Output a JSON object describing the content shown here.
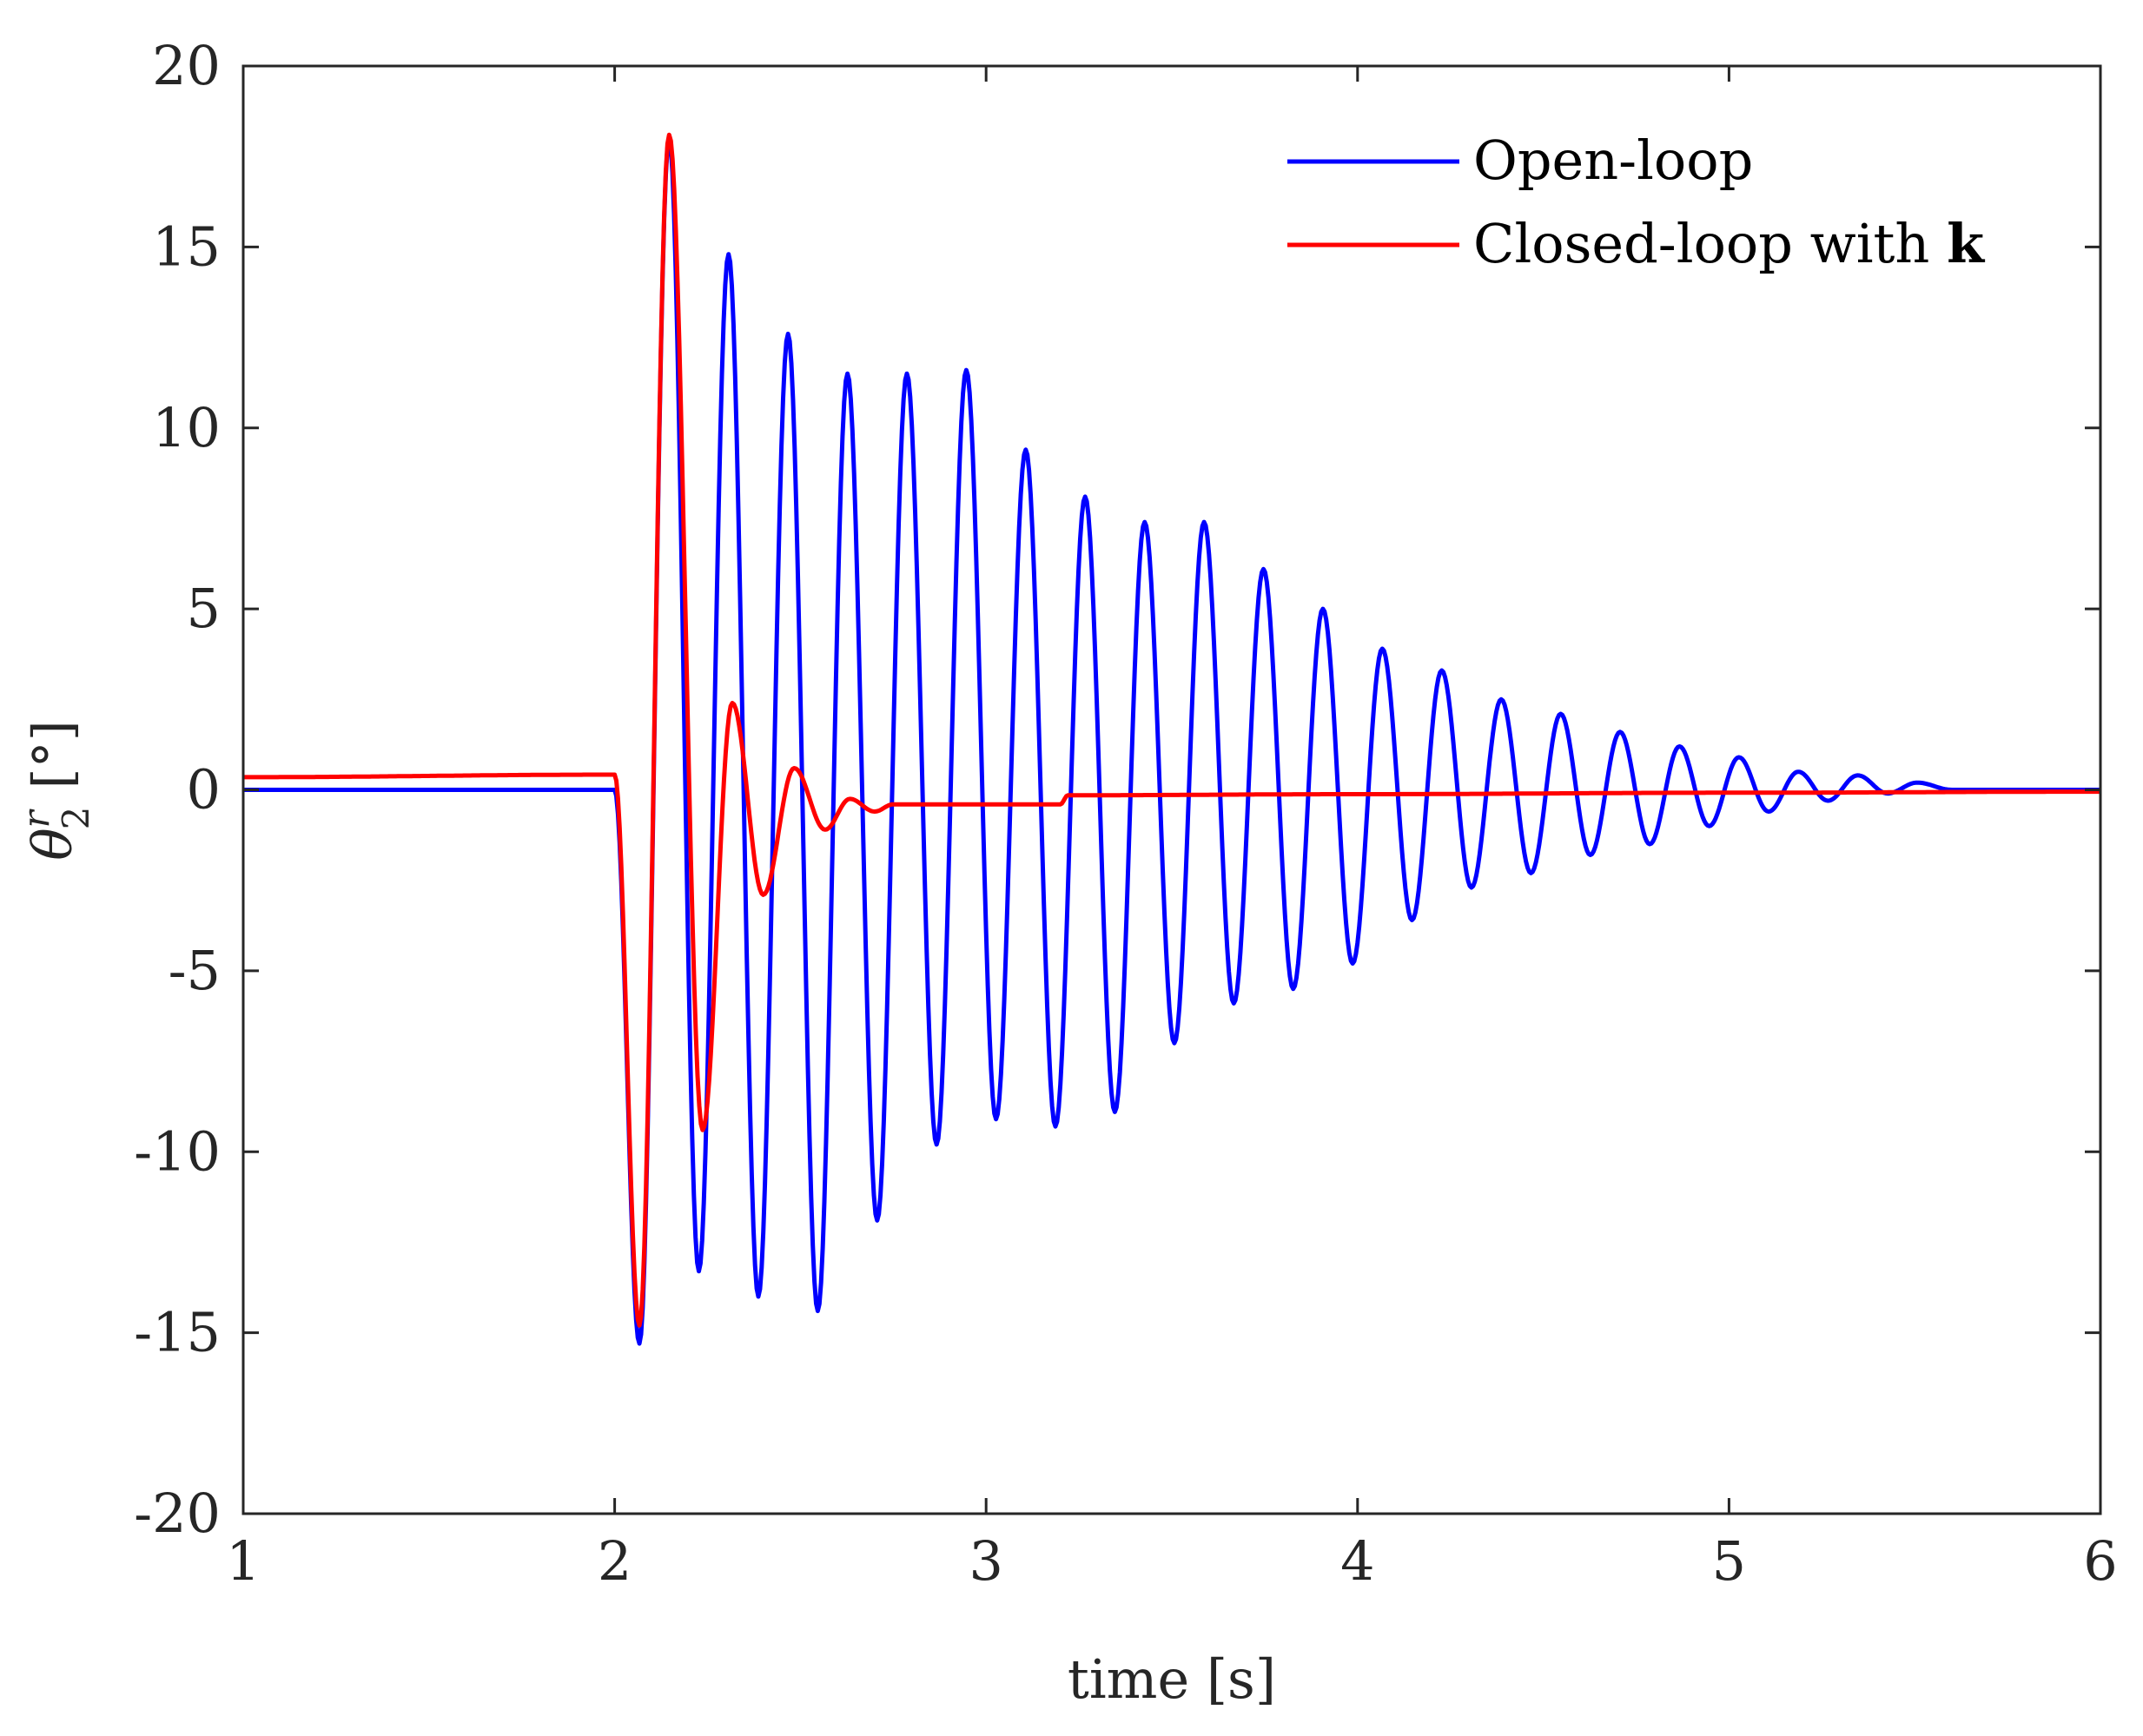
{
  "chart_data": {
    "type": "line",
    "title": "",
    "xlabel": "time [s]",
    "ylabel": {
      "symbol": "θ",
      "subscript": "2",
      "superscript": "r",
      "unit": "[°]"
    },
    "xlim": [
      1,
      6
    ],
    "ylim": [
      -20,
      20
    ],
    "xticks": [
      1,
      2,
      3,
      4,
      5,
      6
    ],
    "xtick_labels": [
      "1",
      "2",
      "3",
      "4",
      "5",
      "6"
    ],
    "yticks": [
      -20,
      -15,
      -10,
      -5,
      0,
      5,
      10,
      15,
      20
    ],
    "ytick_labels": [
      "-20",
      "-15",
      "-10",
      "-5",
      "0",
      "5",
      "10",
      "15",
      "20"
    ],
    "grid": false,
    "legend_position": "top-right",
    "series": [
      {
        "name": "Open-loop",
        "color": "#0000ff",
        "x": [
          1.0,
          2.0,
          2.0667,
          2.1467,
          2.2267,
          2.3067,
          2.3867,
          2.4667,
          2.5467,
          2.6267,
          2.7067,
          2.7867,
          2.8667,
          2.9467,
          3.0267,
          3.1067,
          3.1867,
          3.2667,
          3.3467,
          3.4267,
          3.5067,
          3.5867,
          3.6667,
          3.7467,
          3.8267,
          3.9067,
          3.9867,
          4.0667,
          4.1467,
          4.2267,
          4.3067,
          4.3867,
          4.4667,
          4.5467,
          4.6267,
          4.7067,
          4.7867,
          4.8667,
          4.9467,
          5.0267,
          5.1067,
          5.1867,
          5.2667,
          5.3467,
          5.4267,
          5.5067,
          5.6,
          6.0
        ],
        "y": [
          0.0,
          0.0,
          -15.3,
          18.0,
          -13.3,
          14.8,
          -14.0,
          12.6,
          -14.4,
          11.5,
          -11.9,
          11.5,
          -9.8,
          11.6,
          -9.1,
          9.4,
          -9.3,
          8.1,
          -8.9,
          7.4,
          -7.0,
          7.4,
          -5.9,
          6.1,
          -5.5,
          5.0,
          -4.8,
          3.9,
          -3.6,
          3.3,
          -2.7,
          2.5,
          -2.3,
          2.1,
          -1.8,
          1.6,
          -1.5,
          1.2,
          -1.0,
          0.9,
          -0.6,
          0.5,
          -0.3,
          0.4,
          -0.1,
          0.2,
          0.0,
          0.0
        ]
      },
      {
        "name": "Closed-loop with k",
        "color": "#ff0000",
        "x": [
          1.0,
          2.0,
          2.0667,
          2.1467,
          2.2367,
          2.3167,
          2.4,
          2.4833,
          2.5667,
          2.6333,
          2.7,
          2.75,
          3.2,
          3.22,
          4.0,
          5.0,
          6.0
        ],
        "y": [
          0.35,
          0.42,
          -14.8,
          18.1,
          -9.4,
          2.4,
          -2.9,
          0.6,
          -1.1,
          -0.25,
          -0.6,
          -0.4,
          -0.4,
          -0.15,
          -0.12,
          -0.08,
          -0.05
        ]
      }
    ]
  }
}
